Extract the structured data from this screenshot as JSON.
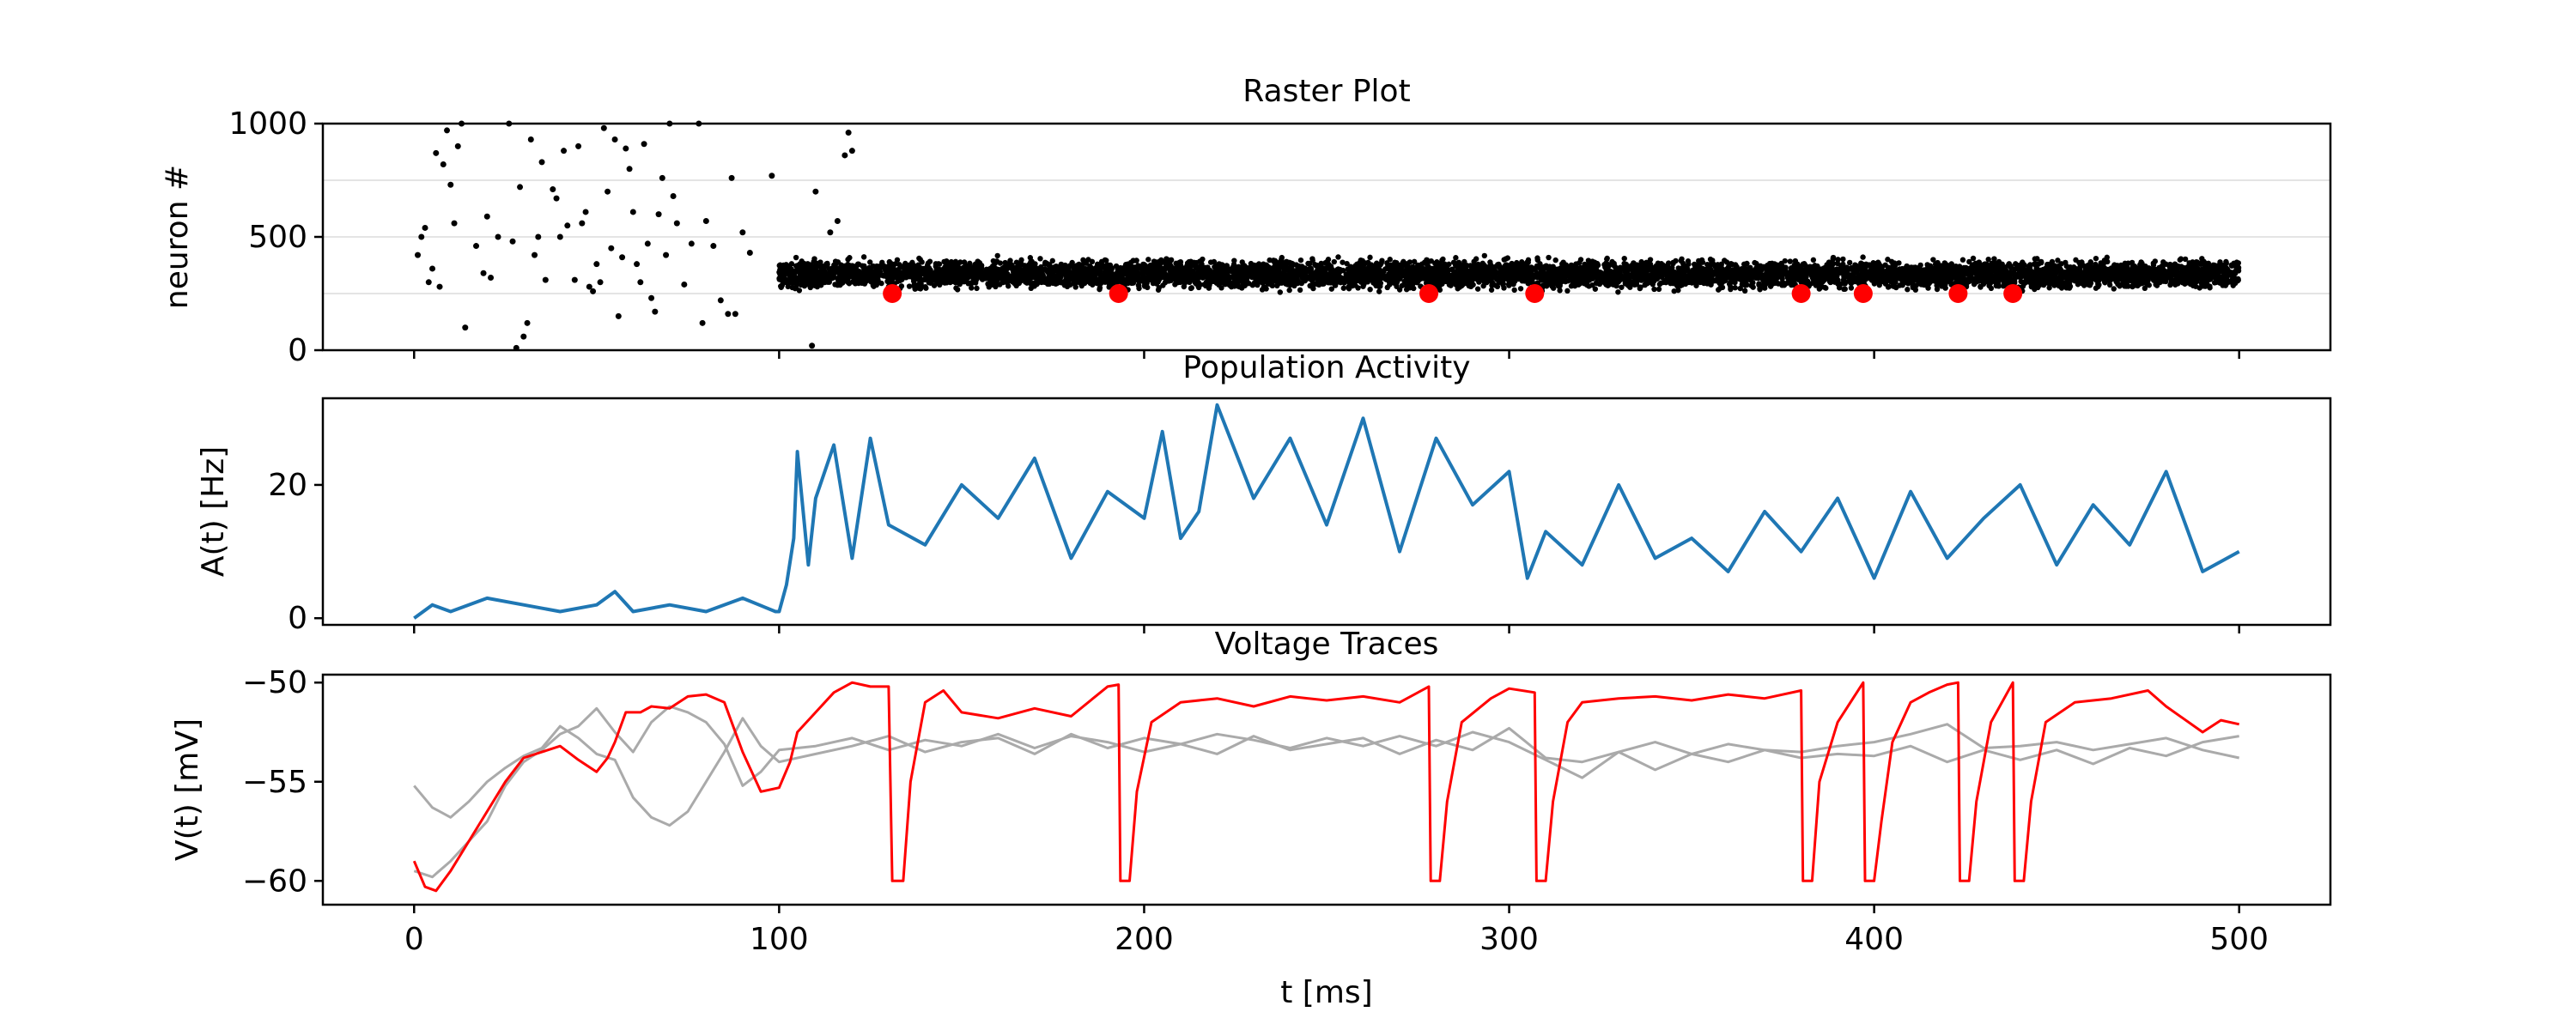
{
  "figure": {
    "xlabel": "t [ms]"
  },
  "chart_data": [
    {
      "type": "scatter",
      "title": "Raster Plot",
      "ylabel": "neuron #",
      "xlim": [
        -25,
        525
      ],
      "ylim": [
        0,
        1000
      ],
      "yticks": [
        0,
        500,
        1000
      ],
      "ytick_labels": [
        "0",
        "500",
        "1000"
      ],
      "hlines": [
        250,
        500,
        750
      ],
      "colors": {
        "spikes": "#000000",
        "highlight": "#ff0000",
        "grid": "#dcdcdc"
      },
      "series": [
        {
          "points": [
            [
              1,
              420
            ],
            [
              2,
              500
            ],
            [
              3,
              540
            ],
            [
              4,
              300
            ],
            [
              5,
              360
            ],
            [
              6,
              870
            ],
            [
              7,
              280
            ],
            [
              8,
              820
            ],
            [
              9,
              970
            ],
            [
              10,
              730
            ],
            [
              11,
              560
            ],
            [
              12,
              900
            ],
            [
              13,
              1000
            ],
            [
              14,
              100
            ],
            [
              17,
              460
            ],
            [
              19,
              340
            ],
            [
              20,
              590
            ],
            [
              21,
              320
            ],
            [
              23,
              500
            ],
            [
              26,
              1000
            ],
            [
              27,
              480
            ],
            [
              28,
              10
            ],
            [
              29,
              720
            ],
            [
              30,
              60
            ],
            [
              31,
              120
            ],
            [
              32,
              930
            ],
            [
              33,
              420
            ],
            [
              34,
              500
            ],
            [
              35,
              830
            ],
            [
              36,
              310
            ],
            [
              38,
              710
            ],
            [
              39,
              670
            ],
            [
              40,
              500
            ],
            [
              41,
              880
            ],
            [
              42,
              550
            ],
            [
              44,
              310
            ],
            [
              45,
              900
            ],
            [
              46,
              560
            ],
            [
              47,
              610
            ],
            [
              48,
              280
            ],
            [
              49,
              260
            ],
            [
              50,
              380
            ],
            [
              51,
              300
            ],
            [
              52,
              980
            ],
            [
              53,
              700
            ],
            [
              54,
              450
            ],
            [
              55,
              930
            ],
            [
              56,
              150
            ],
            [
              57,
              410
            ],
            [
              58,
              890
            ],
            [
              59,
              800
            ],
            [
              60,
              610
            ],
            [
              61,
              380
            ],
            [
              62,
              300
            ],
            [
              63,
              910
            ],
            [
              64,
              470
            ],
            [
              65,
              230
            ],
            [
              66,
              170
            ],
            [
              67,
              600
            ],
            [
              68,
              760
            ],
            [
              69,
              420
            ],
            [
              70,
              1000
            ],
            [
              71,
              680
            ],
            [
              72,
              560
            ],
            [
              74,
              290
            ],
            [
              76,
              470
            ],
            [
              78,
              1000
            ],
            [
              79,
              120
            ],
            [
              80,
              570
            ],
            [
              82,
              460
            ],
            [
              84,
              220
            ],
            [
              86,
              160
            ],
            [
              87,
              760
            ],
            [
              88,
              160
            ],
            [
              90,
              520
            ],
            [
              92,
              430
            ],
            [
              98,
              770
            ],
            [
              109,
              20
            ],
            [
              110,
              700
            ],
            [
              114,
              520
            ],
            [
              116,
              570
            ],
            [
              118,
              860
            ],
            [
              119,
              960
            ],
            [
              120,
              880
            ]
          ],
          "band": {
            "x": [
              100,
              500
            ],
            "y": [
              250,
              420
            ]
          }
        },
        {
          "name": "",
          "points": [
            [
              131,
              250
            ],
            [
              193,
              250
            ],
            [
              278,
              250
            ],
            [
              307,
              250
            ],
            [
              380,
              250
            ],
            [
              397,
              250
            ],
            [
              423,
              250
            ],
            [
              438,
              250
            ]
          ]
        }
      ]
    },
    {
      "type": "line",
      "title": "Population Activity",
      "ylabel": "A(t) [Hz]",
      "xlim": [
        -25,
        525
      ],
      "ylim": [
        -1,
        33
      ],
      "yticks": [
        0,
        20
      ],
      "ytick_labels": [
        "0",
        "20"
      ],
      "colors": {
        "line": "#1f77b4"
      },
      "series": [
        {
          "x": [
            0,
            5,
            10,
            20,
            30,
            40,
            50,
            55,
            60,
            70,
            80,
            90,
            99,
            100,
            102,
            104,
            105,
            108,
            110,
            115,
            120,
            125,
            130,
            140,
            150,
            160,
            170,
            180,
            190,
            200,
            205,
            210,
            215,
            220,
            230,
            240,
            250,
            260,
            270,
            280,
            290,
            300,
            305,
            310,
            320,
            330,
            340,
            350,
            360,
            370,
            380,
            390,
            400,
            410,
            420,
            430,
            440,
            450,
            460,
            470,
            480,
            490,
            500
          ],
          "values": [
            0,
            2,
            1,
            3,
            2,
            1,
            2,
            4,
            1,
            2,
            1,
            3,
            1,
            1,
            5,
            12,
            25,
            8,
            18,
            26,
            9,
            27,
            14,
            11,
            20,
            15,
            24,
            9,
            19,
            15,
            28,
            12,
            16,
            32,
            18,
            27,
            14,
            30,
            10,
            27,
            17,
            22,
            6,
            13,
            8,
            20,
            9,
            12,
            7,
            16,
            10,
            18,
            6,
            19,
            9,
            15,
            20,
            8,
            17,
            11,
            22,
            7,
            10
          ]
        }
      ]
    },
    {
      "type": "line",
      "title": "Voltage Traces",
      "ylabel": "V(t) [mV]",
      "xlim": [
        -25,
        525
      ],
      "ylim": [
        -61.2,
        -49.6
      ],
      "yticks": [
        -50,
        -55,
        -60
      ],
      "ytick_labels": [
        "−50",
        "−55",
        "−60"
      ],
      "colors": {
        "red": "#ff0000",
        "gray": "#aaaaaa"
      },
      "series": [
        {
          "x": [
            0,
            3,
            6,
            10,
            15,
            20,
            25,
            30,
            35,
            40,
            45,
            50,
            53,
            55,
            58,
            62,
            65,
            70,
            75,
            80,
            85,
            90,
            95,
            100,
            103,
            105,
            110,
            115,
            120,
            125,
            130,
            131,
            131.5,
            134,
            136,
            140,
            145,
            150,
            160,
            170,
            180,
            190,
            193,
            193.5,
            196,
            198,
            202,
            210,
            220,
            230,
            240,
            250,
            260,
            270,
            278,
            278.5,
            281,
            283,
            287,
            295,
            300,
            307,
            307.5,
            310,
            312,
            316,
            320,
            330,
            340,
            350,
            360,
            370,
            380,
            380.5,
            383,
            385,
            390,
            397,
            397.5,
            400,
            402,
            405,
            410,
            415,
            420,
            423,
            423.5,
            426,
            428,
            432,
            438,
            438.5,
            441,
            443,
            447,
            455,
            465,
            475,
            480,
            490,
            495,
            500
          ],
          "values": [
            -59,
            -60.3,
            -60.5,
            -59.5,
            -58,
            -56.5,
            -55,
            -53.8,
            -53.5,
            -53.2,
            -53.9,
            -54.5,
            -53.8,
            -53,
            -51.5,
            -51.5,
            -51.2,
            -51.3,
            -50.7,
            -50.6,
            -51,
            -53.5,
            -55.5,
            -55.3,
            -54,
            -52.5,
            -51.5,
            -50.5,
            -50,
            -50.2,
            -50.2,
            -60,
            -60,
            -60,
            -55,
            -51,
            -50.4,
            -51.5,
            -51.8,
            -51.3,
            -51.7,
            -50.2,
            -50.1,
            -60,
            -60,
            -55.5,
            -52,
            -51,
            -50.8,
            -51.2,
            -50.7,
            -50.9,
            -50.7,
            -51,
            -50.2,
            -60,
            -60,
            -56,
            -52,
            -50.8,
            -50.3,
            -50.5,
            -60,
            -60,
            -56,
            -52,
            -51,
            -50.8,
            -50.7,
            -50.9,
            -50.6,
            -50.8,
            -50.4,
            -60,
            -60,
            -55,
            -52,
            -50,
            -60,
            -60,
            -57,
            -53,
            -51,
            -50.5,
            -50.1,
            -50,
            -60,
            -60,
            -56,
            -52,
            -50,
            -60,
            -60,
            -56,
            -52,
            -51,
            -50.8,
            -50.4,
            -51.2,
            -52.5,
            -51.9,
            -52.1
          ]
        },
        {
          "x": [
            0,
            5,
            10,
            15,
            20,
            25,
            30,
            35,
            40,
            45,
            50,
            55,
            60,
            65,
            70,
            75,
            80,
            85,
            90,
            95,
            100,
            110,
            120,
            130,
            140,
            150,
            160,
            170,
            180,
            190,
            200,
            210,
            220,
            230,
            240,
            250,
            260,
            270,
            280,
            290,
            300,
            310,
            320,
            330,
            340,
            350,
            360,
            370,
            380,
            390,
            400,
            410,
            420,
            430,
            440,
            450,
            460,
            470,
            480,
            490,
            500
          ],
          "values": [
            -55.2,
            -56.3,
            -56.8,
            -56,
            -55,
            -54.3,
            -53.7,
            -53.3,
            -52.2,
            -52.8,
            -53.6,
            -53.9,
            -55.8,
            -56.8,
            -57.2,
            -56.5,
            -55,
            -53.5,
            -51.8,
            -53.2,
            -54,
            -53.6,
            -53.2,
            -52.7,
            -53.5,
            -53,
            -52.8,
            -53.6,
            -52.6,
            -53.3,
            -52.8,
            -53.1,
            -53.6,
            -52.7,
            -53.4,
            -53.1,
            -52.8,
            -53.6,
            -52.9,
            -53.4,
            -52.3,
            -53.8,
            -54,
            -53.5,
            -53,
            -53.6,
            -54,
            -53.4,
            -53.8,
            -53.6,
            -53.7,
            -53.2,
            -54,
            -53.4,
            -53.9,
            -53.4,
            -54.1,
            -53.3,
            -53.7,
            -53,
            -52.7
          ]
        },
        {
          "x": [
            0,
            5,
            10,
            15,
            20,
            25,
            30,
            35,
            40,
            45,
            50,
            55,
            60,
            65,
            70,
            75,
            80,
            85,
            90,
            95,
            100,
            110,
            120,
            130,
            140,
            150,
            160,
            170,
            180,
            190,
            200,
            210,
            220,
            230,
            240,
            250,
            260,
            270,
            280,
            290,
            300,
            310,
            320,
            330,
            340,
            350,
            360,
            370,
            380,
            390,
            400,
            410,
            420,
            430,
            440,
            450,
            460,
            470,
            480,
            490,
            500
          ],
          "values": [
            -59.5,
            -59.8,
            -59,
            -58,
            -57,
            -55.2,
            -54,
            -53.4,
            -52.6,
            -52.2,
            -51.3,
            -52.5,
            -53.5,
            -52,
            -51.2,
            -51.5,
            -52,
            -53.1,
            -55.2,
            -54.5,
            -53.4,
            -53.2,
            -52.8,
            -53.4,
            -52.9,
            -53.2,
            -52.6,
            -53.3,
            -52.7,
            -53,
            -53.5,
            -53.1,
            -52.6,
            -52.9,
            -53.3,
            -52.8,
            -53.2,
            -52.7,
            -53.2,
            -52.5,
            -53,
            -53.9,
            -54.8,
            -53.5,
            -54.4,
            -53.6,
            -53.1,
            -53.4,
            -53.5,
            -53.2,
            -53,
            -52.6,
            -52.1,
            -53.3,
            -53.2,
            -53,
            -53.4,
            -53.1,
            -52.8,
            -53.4,
            -53.8
          ]
        }
      ]
    }
  ],
  "xaxis": {
    "ticks": [
      0,
      100,
      200,
      300,
      400,
      500
    ],
    "tick_labels": [
      "0",
      "100",
      "200",
      "300",
      "400",
      "500"
    ]
  }
}
